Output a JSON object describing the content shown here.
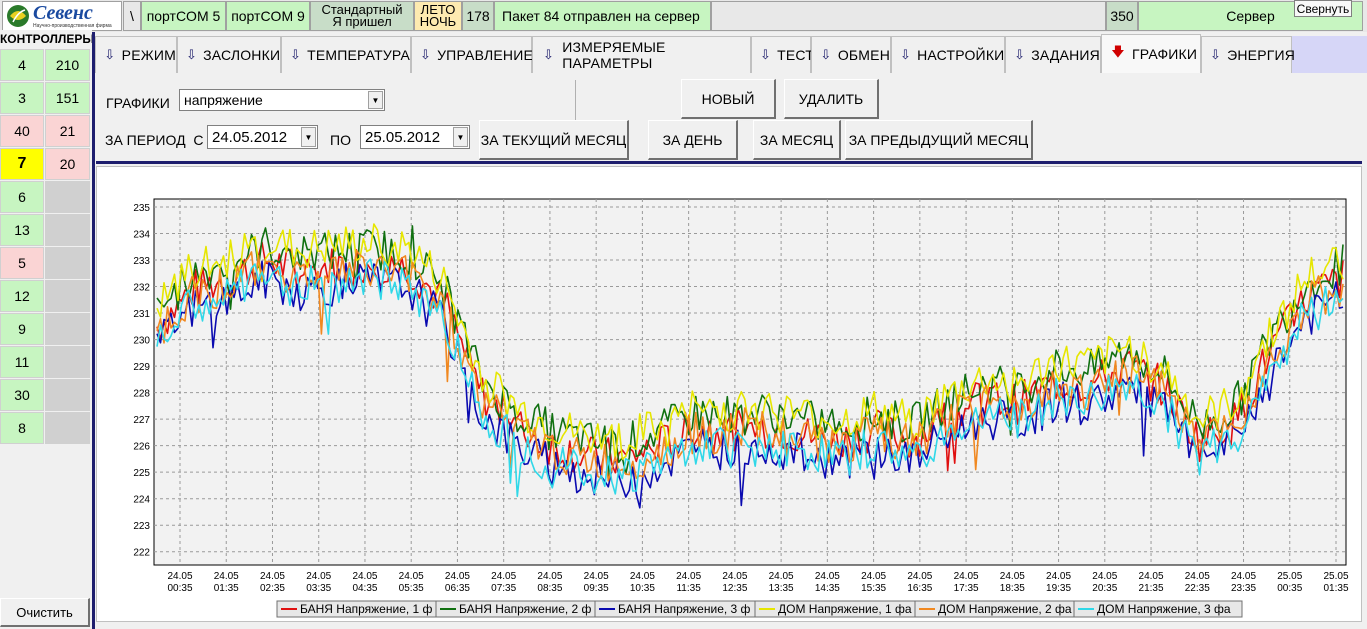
{
  "topbar": {
    "logo_text": "Севенс",
    "logo_sub": "Научно-производственная фирма",
    "backslash": "\\",
    "port1": "портCOM 5",
    "port2": "портCOM 9",
    "mode_line1": "Стандартный",
    "mode_line2": "Я пришел",
    "season_line1": "ЛЕТО",
    "season_line2": "НОЧЬ",
    "count": "178",
    "message": "Пакет 84 отправлен на сервер",
    "num2": "350",
    "server": "Сервер",
    "minimize": "Свернуть"
  },
  "sidebar": {
    "title": "КОНТРОЛЛЕРЫ",
    "clear": "Очистить",
    "rows": [
      {
        "id": "4",
        "val": "210",
        "color": "#c7f5c1",
        "valcolor": "#c7f5c1"
      },
      {
        "id": "3",
        "val": "151",
        "color": "#c7f5c1",
        "valcolor": "#c7f5c1"
      },
      {
        "id": "40",
        "val": "21",
        "color": "#fad4d4",
        "valcolor": "#fad4d4"
      },
      {
        "id": "7",
        "val": "20",
        "color": "#ffff00",
        "valcolor": "#fad4d4"
      },
      {
        "id": "6",
        "val": "",
        "color": "#c7f5c1",
        "valcolor": "#d0d0d0"
      },
      {
        "id": "13",
        "val": "",
        "color": "#c7f5c1",
        "valcolor": "#d0d0d0"
      },
      {
        "id": "5",
        "val": "",
        "color": "#fad4d4",
        "valcolor": "#d0d0d0"
      },
      {
        "id": "12",
        "val": "",
        "color": "#c7f5c1",
        "valcolor": "#d0d0d0"
      },
      {
        "id": "9",
        "val": "",
        "color": "#c7f5c1",
        "valcolor": "#d0d0d0"
      },
      {
        "id": "11",
        "val": "",
        "color": "#c7f5c1",
        "valcolor": "#d0d0d0"
      },
      {
        "id": "30",
        "val": "",
        "color": "#c7f5c1",
        "valcolor": "#d0d0d0"
      },
      {
        "id": "8",
        "val": "",
        "color": "#c7f5c1",
        "valcolor": "#d0d0d0"
      }
    ]
  },
  "tabs": [
    "РЕЖИМ",
    "ЗАСЛОНКИ",
    "ТЕМПЕРАТУРА",
    "УПРАВЛЕНИЕ",
    "ИЗМЕРЯЕМЫЕ ПАРАМЕТРЫ",
    "ТЕСТ",
    "ОБМЕН",
    "НАСТРОЙКИ",
    "ЗАДАНИЯ",
    "ГРАФИКИ",
    "ЭНЕРГИЯ"
  ],
  "active_tab": "ГРАФИКИ",
  "controls": {
    "graphs_label": "ГРАФИКИ",
    "graph_select": "напряжение",
    "new_button": "НОВЫЙ",
    "delete_button": "УДАЛИТЬ",
    "period_label": "ЗА ПЕРИОД  С",
    "date_from": "24.05.2012",
    "to_label": "ПО",
    "date_to": "25.05.2012",
    "current_month": "ЗА ТЕКУЩИЙ МЕСЯЦ",
    "day": "ЗА ДЕНЬ",
    "month": "ЗА МЕСЯЦ",
    "prev_month": "ЗА ПРЕДЫДУЩИЙ МЕСЯЦ"
  },
  "chart_data": {
    "type": "line",
    "ylim": [
      221.5,
      235.3
    ],
    "yticks": [
      222,
      223,
      224,
      225,
      226,
      227,
      228,
      229,
      230,
      231,
      232,
      233,
      234,
      235
    ],
    "x_ticks": [
      [
        "24.05",
        "00:35"
      ],
      [
        "24.05",
        "01:35"
      ],
      [
        "24.05",
        "02:35"
      ],
      [
        "24.05",
        "03:35"
      ],
      [
        "24.05",
        "04:35"
      ],
      [
        "24.05",
        "05:35"
      ],
      [
        "24.05",
        "06:35"
      ],
      [
        "24.05",
        "07:35"
      ],
      [
        "24.05",
        "08:35"
      ],
      [
        "24.05",
        "09:35"
      ],
      [
        "24.05",
        "10:35"
      ],
      [
        "24.05",
        "11:35"
      ],
      [
        "24.05",
        "12:35"
      ],
      [
        "24.05",
        "13:35"
      ],
      [
        "24.05",
        "14:35"
      ],
      [
        "24.05",
        "15:35"
      ],
      [
        "24.05",
        "16:35"
      ],
      [
        "24.05",
        "17:35"
      ],
      [
        "24.05",
        "18:35"
      ],
      [
        "24.05",
        "19:35"
      ],
      [
        "24.05",
        "20:35"
      ],
      [
        "24.05",
        "21:35"
      ],
      [
        "24.05",
        "22:35"
      ],
      [
        "24.05",
        "23:35"
      ],
      [
        "25.05",
        "00:35"
      ],
      [
        "25.05",
        "01:35"
      ]
    ],
    "grid": true,
    "legend_position": "bottom",
    "series": [
      {
        "name": "БАНЯ Напряжение, 1 ф",
        "color": "#e01010",
        "offset": 0.0,
        "values": [
          230.5,
          231.9,
          232.3,
          233.0,
          232.6,
          232.8,
          232.9,
          232.7,
          231.4,
          228.0,
          226.7,
          226.0,
          225.6,
          225.5,
          226.0,
          226.7,
          226.6,
          226.7,
          226.4,
          226.2,
          226.6,
          226.2,
          227.1,
          227.8,
          227.6,
          228.4,
          228.3,
          229.0,
          228.2,
          226.2,
          226.9,
          229.6,
          231.6,
          232.3
        ]
      },
      {
        "name": "БАНЯ Напряжение, 2 ф",
        "color": "#107010",
        "offset": 0.55,
        "values": [
          230.5,
          231.9,
          232.3,
          233.0,
          232.6,
          232.8,
          232.9,
          232.7,
          231.4,
          228.0,
          226.7,
          226.0,
          225.6,
          225.5,
          226.0,
          226.7,
          226.6,
          226.7,
          226.4,
          226.2,
          226.6,
          226.2,
          227.1,
          227.8,
          227.6,
          228.4,
          228.3,
          229.0,
          228.2,
          226.2,
          226.9,
          229.6,
          231.6,
          232.3
        ]
      },
      {
        "name": "БАНЯ Напряжение, 3 ф",
        "color": "#0a0ab0",
        "offset": -0.75,
        "values": [
          230.5,
          231.9,
          232.3,
          233.0,
          232.6,
          232.8,
          232.9,
          232.7,
          231.4,
          228.0,
          226.7,
          226.0,
          225.6,
          225.5,
          226.0,
          226.7,
          226.6,
          226.7,
          226.4,
          226.2,
          226.6,
          226.2,
          227.1,
          227.8,
          227.6,
          228.4,
          228.3,
          229.0,
          228.2,
          226.2,
          226.9,
          229.6,
          231.6,
          232.3
        ]
      },
      {
        "name": "ДОМ Напряжение, 1 фа",
        "color": "#e6e600",
        "offset": 0.7,
        "values": [
          230.5,
          231.9,
          232.3,
          233.0,
          232.6,
          232.8,
          232.9,
          232.7,
          231.4,
          228.0,
          226.7,
          226.0,
          225.6,
          225.5,
          226.0,
          226.7,
          226.6,
          226.7,
          226.4,
          226.2,
          226.6,
          226.2,
          227.1,
          227.8,
          227.6,
          228.4,
          228.3,
          229.0,
          228.2,
          226.2,
          226.9,
          229.6,
          231.6,
          232.3
        ]
      },
      {
        "name": "ДОМ Напряжение, 2 фа",
        "color": "#f08820",
        "offset": -0.2,
        "values": [
          230.5,
          231.9,
          232.3,
          233.0,
          232.6,
          232.8,
          232.9,
          232.7,
          231.4,
          228.0,
          226.7,
          226.0,
          225.6,
          225.5,
          226.0,
          226.7,
          226.6,
          226.7,
          226.4,
          226.2,
          226.6,
          226.2,
          227.1,
          227.8,
          227.6,
          228.4,
          228.3,
          229.0,
          228.2,
          226.2,
          226.9,
          229.6,
          231.6,
          232.3
        ]
      },
      {
        "name": "ДОМ Напряжение, 3 фа",
        "color": "#30d8e8",
        "offset": -0.65,
        "values": [
          230.5,
          231.9,
          232.3,
          233.0,
          232.6,
          232.8,
          232.9,
          232.7,
          231.4,
          228.0,
          226.7,
          226.0,
          225.6,
          225.5,
          226.0,
          226.7,
          226.6,
          226.7,
          226.4,
          226.2,
          226.6,
          226.2,
          227.1,
          227.8,
          227.6,
          228.4,
          228.3,
          229.0,
          228.2,
          226.2,
          226.9,
          229.6,
          231.6,
          232.3
        ]
      }
    ]
  }
}
